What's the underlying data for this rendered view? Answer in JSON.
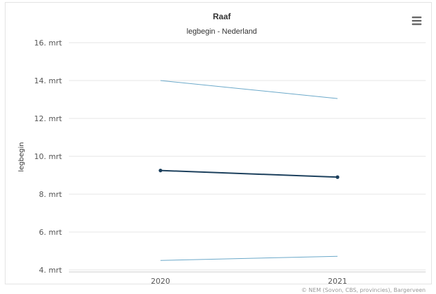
{
  "chart_data": {
    "type": "line",
    "title": "Raaf",
    "subtitle": "legbegin - Nederland",
    "ylabel": "legbegin",
    "xlabel": "",
    "x": [
      "2020",
      "2021"
    ],
    "y_ticks": [
      {
        "value": 4,
        "label": "4. mrt"
      },
      {
        "value": 6,
        "label": "6. mrt"
      },
      {
        "value": 8,
        "label": "8. mrt"
      },
      {
        "value": 10,
        "label": "10. mrt"
      },
      {
        "value": 12,
        "label": "12. mrt"
      },
      {
        "value": 14,
        "label": "14. mrt"
      },
      {
        "value": 16,
        "label": "16. mrt"
      }
    ],
    "ylim": [
      4,
      16
    ],
    "series": [
      {
        "values": [
          14.0,
          13.05
        ],
        "color": "#6aa8c9",
        "width": 1,
        "markers": false
      },
      {
        "values": [
          9.25,
          8.9
        ],
        "color": "#1b3f5c",
        "width": 2,
        "markers": true
      },
      {
        "values": [
          4.5,
          4.72
        ],
        "color": "#6aa8c9",
        "width": 1,
        "markers": false
      }
    ],
    "grid": true,
    "legend": "none",
    "credit": "© NEM (Sovon, CBS, provincies), Bargerveen"
  },
  "menu_icon": "hamburger-menu-icon"
}
